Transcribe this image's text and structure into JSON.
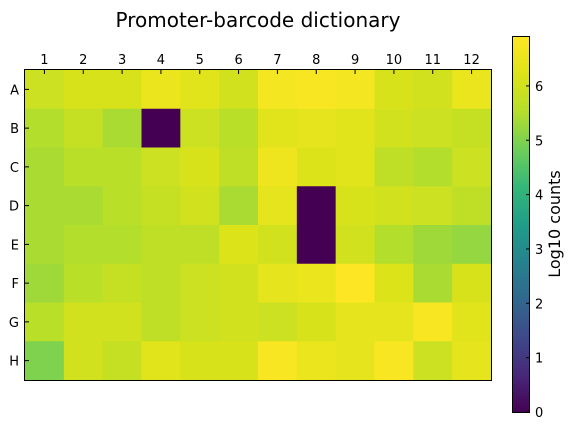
{
  "chart_data": {
    "type": "heatmap",
    "title": "Promoter-barcode dictionary",
    "columns": [
      "1",
      "2",
      "3",
      "4",
      "5",
      "6",
      "7",
      "8",
      "9",
      "10",
      "11",
      "12"
    ],
    "rows": [
      "A",
      "B",
      "C",
      "D",
      "E",
      "F",
      "G",
      "H"
    ],
    "values": [
      [
        5.9,
        6.1,
        6.1,
        6.5,
        6.3,
        6.0,
        6.7,
        6.8,
        6.7,
        6.1,
        6.0,
        6.5
      ],
      [
        5.5,
        5.8,
        5.4,
        0.0,
        5.9,
        5.6,
        6.3,
        6.4,
        6.3,
        6.0,
        5.9,
        5.8
      ],
      [
        5.4,
        5.6,
        5.6,
        5.9,
        6.1,
        5.7,
        6.6,
        6.2,
        6.3,
        5.7,
        5.5,
        5.9
      ],
      [
        5.4,
        5.4,
        5.6,
        5.8,
        6.0,
        5.4,
        6.4,
        0.0,
        6.1,
        6.0,
        5.9,
        5.7
      ],
      [
        5.4,
        5.5,
        5.5,
        5.7,
        5.7,
        6.2,
        6.0,
        0.0,
        6.0,
        5.5,
        5.3,
        5.2
      ],
      [
        5.3,
        5.6,
        5.8,
        5.7,
        5.9,
        6.0,
        6.4,
        6.5,
        6.9,
        6.2,
        5.4,
        6.1
      ],
      [
        5.6,
        6.0,
        6.0,
        5.7,
        5.9,
        6.0,
        5.9,
        6.1,
        6.4,
        6.4,
        6.8,
        6.3
      ],
      [
        5.0,
        6.0,
        5.8,
        6.3,
        6.1,
        6.1,
        6.8,
        6.5,
        6.4,
        6.8,
        5.9,
        6.4
      ]
    ],
    "colorbar": {
      "label": "Log10 counts",
      "range": [
        0,
        6.9
      ],
      "ticks": [
        "0",
        "1",
        "2",
        "3",
        "4",
        "5",
        "6"
      ],
      "colormap": "viridis"
    },
    "grid": false
  }
}
